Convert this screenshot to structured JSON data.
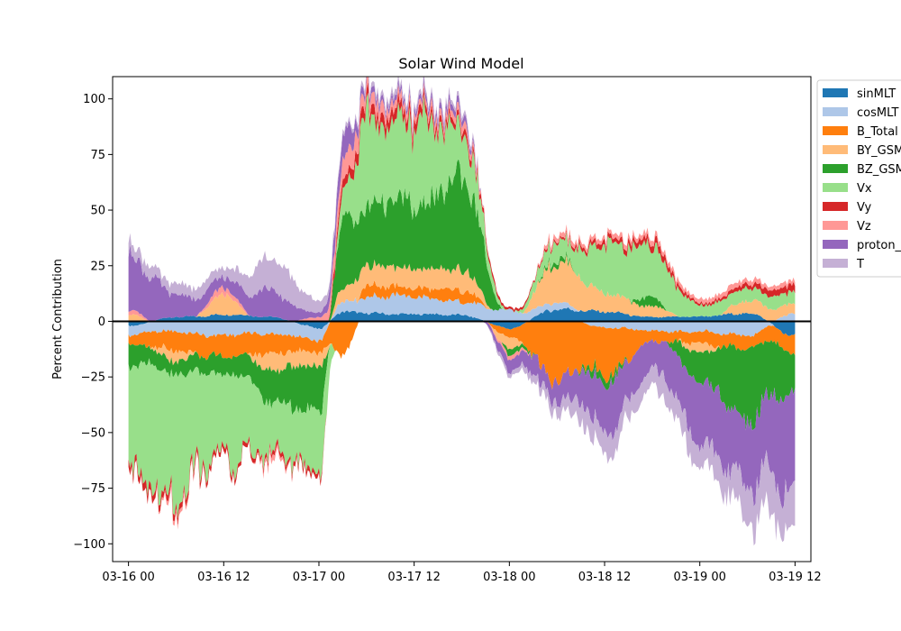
{
  "chart_data": {
    "type": "area",
    "title": "Solar Wind Model",
    "xlabel": "",
    "ylabel": "Percent Contribution",
    "x_start": "2024-03-16 00:00",
    "x_end": "2024-03-19 12:00",
    "xlim": [
      "2024-03-15 22:00",
      "2024-03-19 14:00"
    ],
    "ylim": [
      -108,
      110
    ],
    "x_tick_labels": [
      "03-16 00",
      "03-16 12",
      "03-17 00",
      "03-17 12",
      "03-18 00",
      "03-18 12",
      "03-19 00",
      "03-19 12"
    ],
    "x_tick_values": [
      "2024-03-16 00:00",
      "2024-03-16 12:00",
      "2024-03-17 00:00",
      "2024-03-17 12:00",
      "2024-03-18 00:00",
      "2024-03-18 12:00",
      "2024-03-19 00:00",
      "2024-03-19 12:00"
    ],
    "y_ticks": [
      -100,
      -75,
      -50,
      -25,
      0,
      25,
      50,
      75,
      100
    ],
    "y_tick_labels": [
      "−100",
      "−75",
      "−50",
      "−25",
      "0",
      "25",
      "50",
      "75",
      "100"
    ],
    "zero_line": true,
    "grid": false,
    "legend_position": "outside-right",
    "x": [
      "2024-03-16 00:00",
      "2024-03-16 06:00",
      "2024-03-16 12:00",
      "2024-03-16 18:00",
      "2024-03-17 00:00",
      "2024-03-17 03:00",
      "2024-03-17 06:00",
      "2024-03-17 12:00",
      "2024-03-17 18:00",
      "2024-03-18 00:00",
      "2024-03-18 06:00",
      "2024-03-18 12:00",
      "2024-03-18 18:00",
      "2024-03-19 00:00",
      "2024-03-19 06:00",
      "2024-03-19 12:00"
    ],
    "series": [
      {
        "name": "sinMLT",
        "color": "#1f77b4",
        "values": [
          -2,
          2,
          3,
          2,
          -3,
          4,
          4,
          3,
          3,
          -3,
          6,
          4,
          2,
          2,
          4,
          -6
        ]
      },
      {
        "name": "cosMLT",
        "color": "#aec7e8",
        "values": [
          -4,
          -5,
          -6,
          -6,
          -5,
          5,
          7,
          8,
          6,
          5,
          3,
          -3,
          -4,
          -5,
          -6,
          4
        ]
      },
      {
        "name": "B_Total",
        "color": "#ff7f0e",
        "values": [
          -5,
          -8,
          -10,
          -8,
          -6,
          -15,
          5,
          4,
          5,
          -4,
          -25,
          -20,
          -5,
          -5,
          -6,
          -8
        ]
      },
      {
        "name": "BY_GSM",
        "color": "#ffbb78",
        "values": [
          3,
          -5,
          8,
          -8,
          -6,
          6,
          10,
          8,
          10,
          -5,
          20,
          8,
          5,
          -4,
          6,
          4
        ]
      },
      {
        "name": "BZ_GSM",
        "color": "#2ca02c",
        "values": [
          -10,
          -6,
          -8,
          -14,
          -20,
          32,
          25,
          30,
          40,
          -3,
          2,
          -4,
          4,
          -15,
          -30,
          -20
        ]
      },
      {
        "name": "Vx",
        "color": "#98df8a",
        "values": [
          -50,
          -50,
          -40,
          -22,
          -30,
          10,
          38,
          38,
          20,
          0,
          8,
          20,
          25,
          5,
          6,
          5
        ]
      },
      {
        "name": "Vy",
        "color": "#d62728",
        "values": [
          -3,
          -3,
          -2,
          -2,
          -2,
          5,
          5,
          4,
          3,
          1,
          1,
          2,
          3,
          1,
          2,
          3
        ]
      },
      {
        "name": "Vz",
        "color": "#ff9896",
        "values": [
          2,
          -2,
          3,
          -2,
          2,
          10,
          5,
          3,
          3,
          -2,
          2,
          2,
          2,
          2,
          2,
          2
        ]
      },
      {
        "name": "proton_density",
        "color": "#9467bd",
        "values": [
          25,
          10,
          5,
          12,
          2,
          10,
          3,
          2,
          3,
          -5,
          -10,
          -20,
          -15,
          -25,
          -30,
          -40
        ]
      },
      {
        "name": "T",
        "color": "#c5b0d5",
        "values": [
          5,
          5,
          4,
          15,
          5,
          2,
          2,
          2,
          2,
          -2,
          -5,
          -10,
          -8,
          -10,
          -15,
          -20
        ]
      }
    ]
  }
}
